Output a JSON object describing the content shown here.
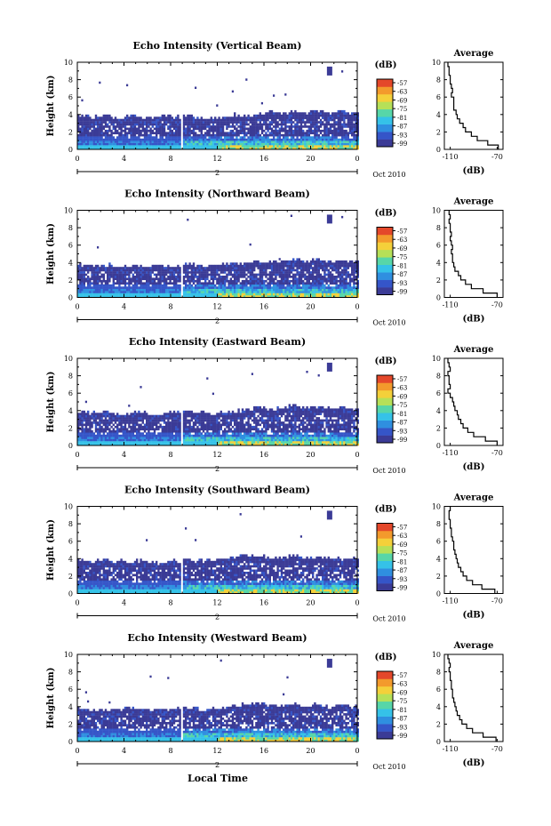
{
  "figure": {
    "date_label": "Oct 2010",
    "xlabel_bottom": "Local Time"
  },
  "chart_data": [
    {
      "type": "heatmap",
      "title": "Echo Intensity (Vertical Beam)",
      "ylabel": "Height (km)",
      "xticks": [
        "0",
        "4",
        "8",
        "12",
        "16",
        "20",
        "0"
      ],
      "xlim_hours": [
        0,
        24
      ],
      "yticks": [
        "0",
        "2",
        "4",
        "6",
        "8",
        "10"
      ],
      "ylim_km": [
        0,
        10
      ],
      "day_label": "2",
      "date_label": "Oct 2010",
      "colorbar": {
        "unit": "(dB)",
        "ticks": [
          "-57",
          "-63",
          "-69",
          "-75",
          "-81",
          "-87",
          "-93",
          "-99"
        ]
      },
      "data_gap_hours": [
        8.8,
        8.9
      ],
      "echo_top_km": [
        3.7,
        3.6,
        3.8,
        3.5,
        3.7,
        3.6,
        3.5,
        3.7,
        3.6,
        3.8,
        3.6,
        3.5,
        3.6,
        3.9,
        3.7,
        4.0,
        4.1,
        4.0,
        4.2,
        4.1,
        4.3,
        4.0,
        4.2,
        4.1
      ],
      "average_profile": {
        "title": "Average",
        "xlabel": "(dB)",
        "xticks": [
          "-110",
          "-70"
        ],
        "xlim": [
          -115,
          -65
        ],
        "yticks": [
          "0",
          "2",
          "4",
          "6",
          "8",
          "10"
        ],
        "height_km": [
          0,
          0.5,
          1,
          1.5,
          2,
          2.5,
          3,
          3.5,
          4,
          4.5,
          5,
          5.5,
          6,
          6.5,
          7,
          7.5,
          8,
          8.5,
          9,
          9.5
        ],
        "db": [
          -69,
          -78,
          -87,
          -92,
          -97,
          -99,
          -102,
          -104,
          -105,
          -107,
          -107,
          -107,
          -109,
          -108,
          -109,
          -110,
          -110,
          -111,
          -111,
          -112
        ]
      }
    },
    {
      "type": "heatmap",
      "title": "Echo Intensity (Northward Beam)",
      "ylabel": "Height (km)",
      "xticks": [
        "0",
        "4",
        "8",
        "12",
        "16",
        "20",
        "0"
      ],
      "xlim_hours": [
        0,
        24
      ],
      "yticks": [
        "0",
        "2",
        "4",
        "6",
        "8",
        "10"
      ],
      "ylim_km": [
        0,
        10
      ],
      "day_label": "2",
      "date_label": "Oct 2010",
      "colorbar": {
        "unit": "(dB)",
        "ticks": [
          "-57",
          "-63",
          "-69",
          "-75",
          "-81",
          "-87",
          "-93",
          "-99"
        ]
      },
      "data_gap_hours": [
        8.8,
        8.9
      ],
      "echo_top_km": [
        3.6,
        3.5,
        3.6,
        3.4,
        3.6,
        3.5,
        3.6,
        3.5,
        3.5,
        3.7,
        3.5,
        3.6,
        3.7,
        3.8,
        3.9,
        4.0,
        3.9,
        4.1,
        4.2,
        4.0,
        4.2,
        4.1,
        4.0,
        4.1
      ],
      "average_profile": {
        "title": "Average",
        "xlabel": "(dB)",
        "xticks": [
          "-110",
          "-70"
        ],
        "xlim": [
          -115,
          -65
        ],
        "yticks": [
          "0",
          "2",
          "4",
          "6",
          "8",
          "10"
        ],
        "height_km": [
          0,
          0.5,
          1,
          1.5,
          2,
          2.5,
          3,
          3.5,
          4,
          4.5,
          5,
          5.5,
          6,
          6.5,
          7,
          7.5,
          8,
          8.5,
          9,
          9.5
        ],
        "db": [
          -70,
          -82,
          -92,
          -97,
          -101,
          -103,
          -106,
          -107,
          -108,
          -108,
          -109,
          -108,
          -109,
          -110,
          -109,
          -110,
          -110,
          -111,
          -110,
          -111
        ]
      }
    },
    {
      "type": "heatmap",
      "title": "Echo Intensity (Eastward Beam)",
      "ylabel": "Height (km)",
      "xticks": [
        "0",
        "4",
        "8",
        "12",
        "16",
        "20",
        "0"
      ],
      "xlim_hours": [
        0,
        24
      ],
      "yticks": [
        "0",
        "2",
        "4",
        "6",
        "8",
        "10"
      ],
      "ylim_km": [
        0,
        10
      ],
      "day_label": "2",
      "date_label": "Oct 2010",
      "colorbar": {
        "unit": "(dB)",
        "ticks": [
          "-57",
          "-63",
          "-69",
          "-75",
          "-81",
          "-87",
          "-93",
          "-99"
        ]
      },
      "data_gap_hours": [
        8.8,
        8.9
      ],
      "echo_top_km": [
        3.8,
        3.6,
        3.7,
        3.5,
        3.6,
        3.7,
        3.5,
        3.6,
        3.7,
        3.8,
        3.7,
        3.6,
        3.8,
        3.9,
        4.1,
        4.3,
        4.1,
        4.2,
        4.4,
        4.2,
        4.3,
        4.1,
        4.2,
        4.0
      ],
      "average_profile": {
        "title": "Average",
        "xlabel": "(dB)",
        "xticks": [
          "-110",
          "-70"
        ],
        "xlim": [
          -115,
          -65
        ],
        "yticks": [
          "0",
          "2",
          "4",
          "6",
          "8",
          "10"
        ],
        "height_km": [
          0,
          0.5,
          1,
          1.5,
          2,
          2.5,
          3,
          3.5,
          4,
          4.5,
          5,
          5.5,
          6,
          6.5,
          7,
          7.5,
          8,
          8.5,
          9,
          9.5
        ],
        "db": [
          -70,
          -80,
          -90,
          -95,
          -99,
          -101,
          -103,
          -104,
          -106,
          -107,
          -108,
          -110,
          -112,
          -110,
          -111,
          -111,
          -112,
          -110,
          -111,
          -112
        ]
      }
    },
    {
      "type": "heatmap",
      "title": "Echo Intensity (Southward Beam)",
      "ylabel": "Height (km)",
      "xticks": [
        "0",
        "4",
        "8",
        "12",
        "16",
        "20",
        "0"
      ],
      "xlim_hours": [
        0,
        24
      ],
      "yticks": [
        "0",
        "2",
        "4",
        "6",
        "8",
        "10"
      ],
      "ylim_km": [
        0,
        10
      ],
      "day_label": "2",
      "date_label": "Oct 2010",
      "colorbar": {
        "unit": "(dB)",
        "ticks": [
          "-57",
          "-63",
          "-69",
          "-75",
          "-81",
          "-87",
          "-93",
          "-99"
        ]
      },
      "data_gap_hours": [
        8.8,
        8.9
      ],
      "echo_top_km": [
        3.7,
        3.6,
        3.8,
        3.6,
        3.5,
        3.6,
        3.4,
        3.5,
        3.6,
        3.7,
        3.6,
        3.8,
        3.9,
        4.1,
        4.3,
        4.2,
        4.0,
        4.1,
        4.2,
        4.0,
        4.1,
        4.0,
        3.9,
        4.0
      ],
      "average_profile": {
        "title": "Average",
        "xlabel": "(dB)",
        "xticks": [
          "-110",
          "-70"
        ],
        "xlim": [
          -115,
          -65
        ],
        "yticks": [
          "0",
          "2",
          "4",
          "6",
          "8",
          "10"
        ],
        "height_km": [
          0,
          0.5,
          1,
          1.5,
          2,
          2.5,
          3,
          3.5,
          4,
          4.5,
          5,
          5.5,
          6,
          6.5,
          7,
          7.5,
          8,
          8.5,
          9,
          9.5
        ],
        "db": [
          -72,
          -83,
          -91,
          -96,
          -99,
          -101,
          -103,
          -104,
          -105,
          -106,
          -107,
          -107,
          -108,
          -109,
          -109,
          -110,
          -110,
          -111,
          -111,
          -110
        ]
      }
    },
    {
      "type": "heatmap",
      "title": "Echo Intensity (Westward Beam)",
      "ylabel": "Height (km)",
      "xticks": [
        "0",
        "4",
        "8",
        "12",
        "16",
        "20",
        "0"
      ],
      "xlim_hours": [
        0,
        24
      ],
      "yticks": [
        "0",
        "2",
        "4",
        "6",
        "8",
        "10"
      ],
      "ylim_km": [
        0,
        10
      ],
      "day_label": "2",
      "date_label": "Oct 2010",
      "colorbar": {
        "unit": "(dB)",
        "ticks": [
          "-57",
          "-63",
          "-69",
          "-75",
          "-81",
          "-87",
          "-93",
          "-99"
        ]
      },
      "data_gap_hours": [
        8.8,
        8.9
      ],
      "echo_top_km": [
        3.7,
        3.6,
        3.5,
        3.6,
        3.7,
        3.6,
        3.5,
        3.6,
        3.7,
        3.8,
        3.6,
        3.7,
        3.8,
        4.0,
        4.2,
        4.4,
        4.1,
        4.0,
        4.2,
        4.0,
        4.1,
        3.9,
        4.0,
        3.9
      ],
      "average_profile": {
        "title": "Average",
        "xlabel": "(dB)",
        "xticks": [
          "-110",
          "-70"
        ],
        "xlim": [
          -115,
          -65
        ],
        "yticks": [
          "0",
          "2",
          "4",
          "6",
          "8",
          "10"
        ],
        "height_km": [
          0,
          0.5,
          1,
          1.5,
          2,
          2.5,
          3,
          3.5,
          4,
          4.5,
          5,
          5.5,
          6,
          6.5,
          7,
          7.5,
          8,
          8.5,
          9,
          9.5
        ],
        "db": [
          -71,
          -82,
          -91,
          -96,
          -100,
          -102,
          -104,
          -105,
          -106,
          -107,
          -108,
          -108,
          -109,
          -109,
          -110,
          -110,
          -111,
          -110,
          -111,
          -112
        ]
      }
    }
  ]
}
